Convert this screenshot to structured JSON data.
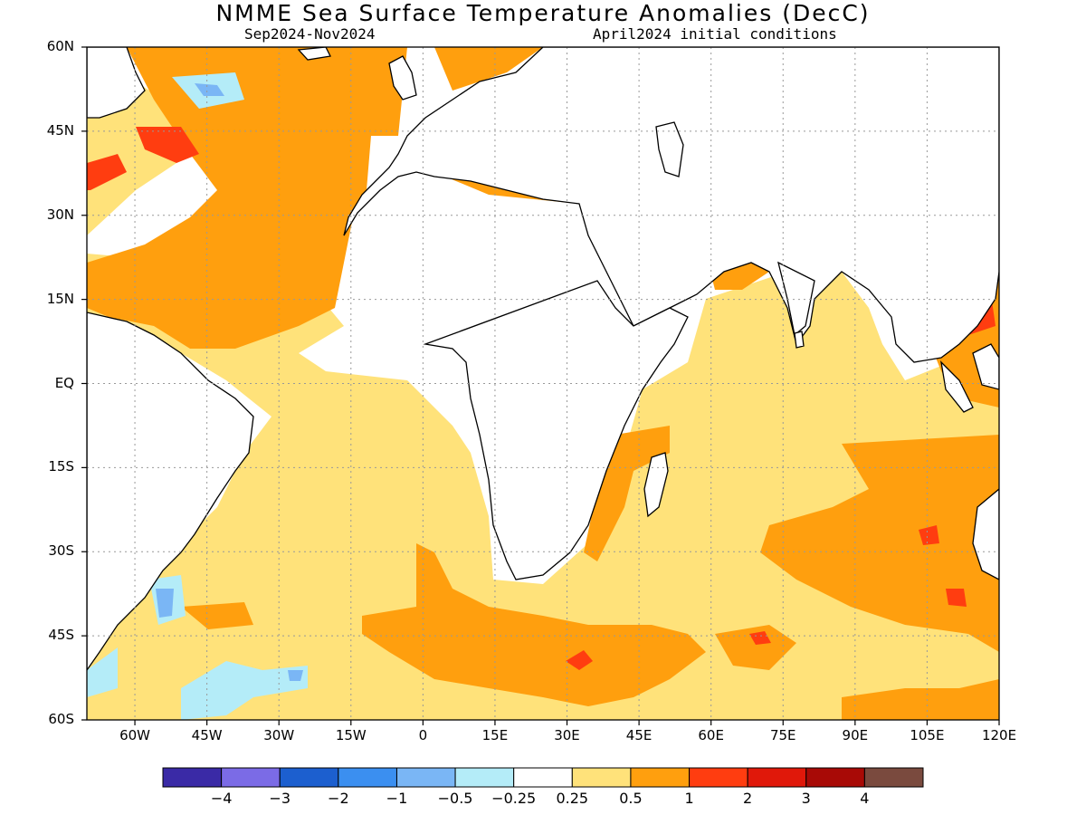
{
  "title": "NMME Sea Surface Temperature Anomalies (DecC)",
  "subtitle_left": "Sep2024-Nov2024",
  "subtitle_right": "April2024 initial conditions",
  "axes": {
    "lat_labels": [
      "60N",
      "45N",
      "30N",
      "15N",
      "EQ",
      "15S",
      "30S",
      "45S",
      "60S"
    ],
    "lon_labels": [
      "60W",
      "45W",
      "30W",
      "15W",
      "0",
      "15E",
      "30E",
      "45E",
      "60E",
      "75E",
      "90E",
      "105E",
      "120E"
    ]
  },
  "colorbar": {
    "labels": [
      "−4",
      "−3",
      "−2",
      "−1",
      "−0.5",
      "−0.25",
      "0.25",
      "0.5",
      "1",
      "2",
      "3",
      "4"
    ],
    "colors": [
      "#3a2aa6",
      "#7b6be6",
      "#1c5fcf",
      "#3b8ff0",
      "#7ab6f5",
      "#b4ecf8",
      "#ffffff",
      "#ffe27a",
      "#ff9f0e",
      "#ff3d10",
      "#e0180a",
      "#a80a06",
      "#7a4a3e"
    ]
  }
}
